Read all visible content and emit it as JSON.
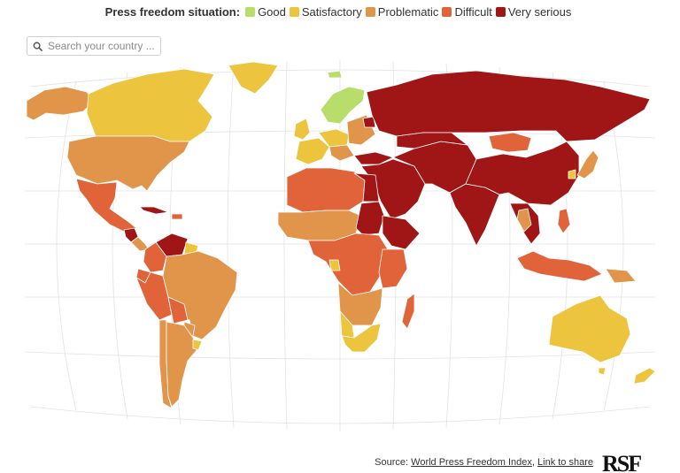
{
  "legend": {
    "title": "Press freedom situation:",
    "categories": [
      {
        "key": "good",
        "label": "Good",
        "color": "#b8dd6a"
      },
      {
        "key": "satisfactory",
        "label": "Satisfactory",
        "color": "#ecc43e"
      },
      {
        "key": "problematic",
        "label": "Problematic",
        "color": "#e0954b"
      },
      {
        "key": "difficult",
        "label": "Difficult",
        "color": "#e0633a"
      },
      {
        "key": "very_serious",
        "label": "Very serious",
        "color": "#a01515"
      }
    ]
  },
  "search": {
    "placeholder": "Search your country ..."
  },
  "footer": {
    "source_prefix": "Source:",
    "source_link": "World Press Freedom Index",
    "separator": ",",
    "share_link": "Link to share"
  },
  "logo": {
    "text": "RSF"
  }
}
